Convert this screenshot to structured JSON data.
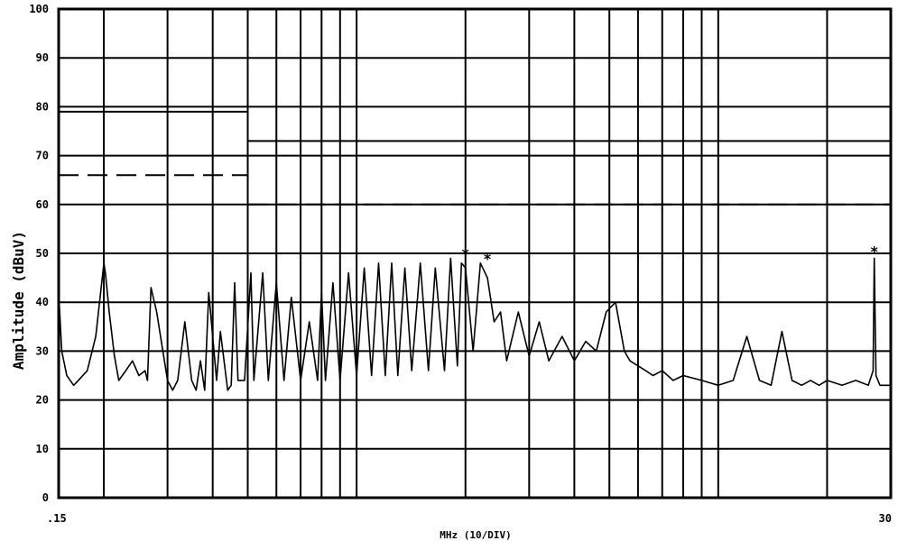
{
  "chart_data": {
    "type": "line",
    "title": "",
    "xlabel": "MHz (10/DIV)",
    "ylabel": "Amplitude (dBuV)",
    "x_scale": "log",
    "xlim": [
      0.15,
      30
    ],
    "ylim": [
      0,
      100
    ],
    "y_ticks": [
      0,
      10,
      20,
      30,
      40,
      50,
      60,
      70,
      80,
      90,
      100
    ],
    "y_tick_labels": [
      "0",
      "10",
      "20",
      "30",
      "40",
      "50",
      "60",
      "70",
      "80",
      "90",
      "100"
    ],
    "x_tick_labels": [
      ".15",
      "30"
    ],
    "grid": true,
    "limit_lines": [
      {
        "style": "solid",
        "segments": [
          {
            "x": [
              0.15,
              0.5
            ],
            "y": 79
          },
          {
            "x": [
              0.5,
              30
            ],
            "y": 73
          }
        ]
      },
      {
        "style": "dashed",
        "segments": [
          {
            "x": [
              0.15,
              0.5
            ],
            "y": 66
          },
          {
            "x": [
              0.5,
              30
            ],
            "y": 60
          }
        ]
      }
    ],
    "markers": [
      {
        "symbol": "*",
        "x": 2.0,
        "y": 50
      },
      {
        "symbol": "*",
        "x": 2.3,
        "y": 49
      },
      {
        "symbol": "*",
        "x": 27.0,
        "y": 50.5
      }
    ],
    "series": [
      {
        "x": [
          0.15,
          0.153,
          0.158,
          0.165,
          0.17,
          0.18,
          0.19,
          0.2,
          0.202,
          0.207,
          0.214,
          0.22,
          0.23,
          0.24,
          0.25,
          0.26,
          0.264,
          0.27,
          0.28,
          0.3,
          0.31,
          0.32,
          0.335,
          0.35,
          0.36,
          0.37,
          0.38,
          0.39,
          0.41,
          0.42,
          0.44,
          0.45,
          0.46,
          0.47,
          0.49,
          0.51,
          0.52,
          0.55,
          0.57,
          0.6,
          0.63,
          0.66,
          0.7,
          0.74,
          0.78,
          0.8,
          0.82,
          0.86,
          0.9,
          0.95,
          1.0,
          1.05,
          1.1,
          1.15,
          1.2,
          1.25,
          1.3,
          1.36,
          1.42,
          1.5,
          1.58,
          1.65,
          1.75,
          1.82,
          1.9,
          1.95,
          2.0,
          2.1,
          2.2,
          2.3,
          2.4,
          2.5,
          2.6,
          2.8,
          3.0,
          3.2,
          3.4,
          3.7,
          4.0,
          4.3,
          4.6,
          4.9,
          5.2,
          5.5,
          5.7,
          6.0,
          6.3,
          6.6,
          7.0,
          7.5,
          8.0,
          9.0,
          10.0,
          11.0,
          12.0,
          13.0,
          14.0,
          15.0,
          16.0,
          17.0,
          18.0,
          19.0,
          20.0,
          22.0,
          24.0,
          26.0,
          26.8,
          27.0,
          27.3,
          28.0,
          30.0
        ],
        "y": [
          42,
          30,
          25,
          23,
          24,
          26,
          33,
          48,
          46,
          38,
          29,
          24,
          26,
          28,
          25,
          26,
          24,
          43,
          38,
          24,
          22,
          24,
          36,
          24,
          22,
          28,
          22,
          42,
          24,
          34,
          22,
          23,
          44,
          24,
          24,
          46,
          24,
          46,
          24,
          44,
          24,
          41,
          24,
          36,
          24,
          42,
          24,
          44,
          24,
          46,
          25,
          47,
          25,
          48,
          25,
          48,
          25,
          47,
          26,
          48,
          26,
          47,
          26,
          49,
          27,
          48,
          47,
          30,
          48,
          45,
          36,
          38,
          28,
          38,
          29,
          36,
          28,
          33,
          28,
          32,
          30,
          38,
          40,
          30,
          28,
          27,
          26,
          25,
          26,
          24,
          25,
          24,
          23,
          24,
          33,
          24,
          23,
          34,
          24,
          23,
          24,
          23,
          24,
          23,
          24,
          23,
          26,
          49,
          25,
          23,
          23
        ]
      }
    ]
  }
}
